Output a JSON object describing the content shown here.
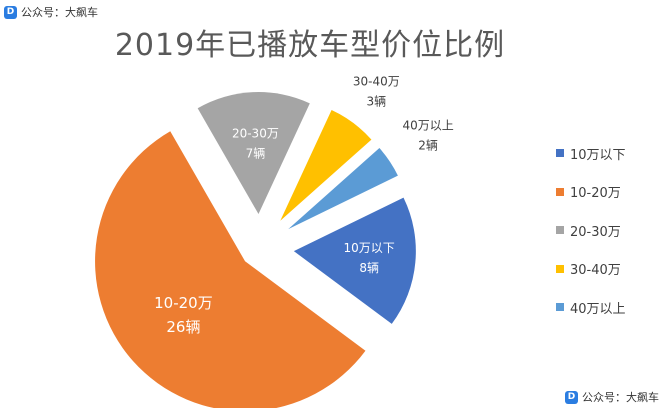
{
  "watermark": {
    "logo": "D",
    "account": "公众号：大飙车"
  },
  "chart_data": {
    "type": "pie",
    "title": "2019年已播放车型价位比例",
    "unit": "辆",
    "slices": [
      {
        "label": "10万以下",
        "value": 8,
        "value_text": "8辆",
        "color": "#4472C4"
      },
      {
        "label": "10-20万",
        "value": 26,
        "value_text": "26辆",
        "color": "#ED7D31"
      },
      {
        "label": "20-30万",
        "value": 7,
        "value_text": "7辆",
        "color": "#A5A5A5"
      },
      {
        "label": "30-40万",
        "value": 3,
        "value_text": "3辆",
        "color": "#FFC000"
      },
      {
        "label": "40万以上",
        "value": 2,
        "value_text": "2辆",
        "color": "#5B9BD5"
      }
    ],
    "legend_position": "right",
    "exploded": true
  }
}
